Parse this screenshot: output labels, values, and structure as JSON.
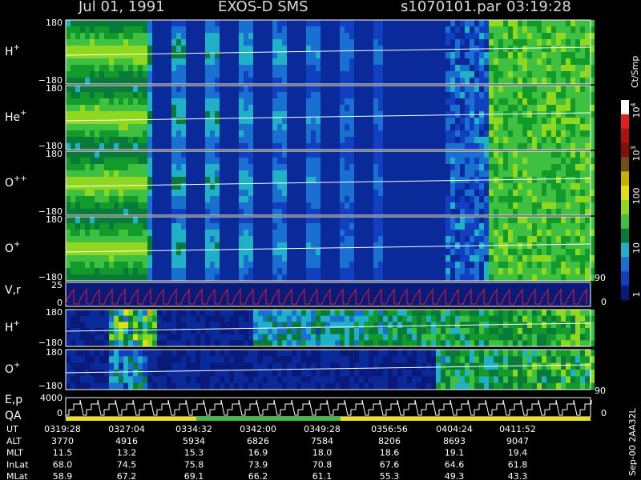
{
  "header": {
    "date": "Jul 01, 1991",
    "instrument": "EXOS-D SMS",
    "file": "s1070101.par",
    "time": "03:19:28"
  },
  "panels": [
    {
      "label": "H",
      "sup": "+",
      "top": "180",
      "bottom": "−180"
    },
    {
      "label": "He",
      "sup": "+",
      "top": "180",
      "bottom": "−180"
    },
    {
      "label": "O",
      "sup": "++",
      "top": "180",
      "bottom": "−180"
    },
    {
      "label": "O",
      "sup": "+",
      "top": "180",
      "bottom": "−180"
    }
  ],
  "velocity": {
    "label": "V,r",
    "top": "25",
    "bottom": "0",
    "right_top": "90",
    "right_bottom": "0"
  },
  "lower_panels": [
    {
      "label": "H",
      "sup": "+",
      "top": "180",
      "bottom": "−180"
    },
    {
      "label": "O",
      "sup": "+",
      "top": "180",
      "bottom": "−180"
    }
  ],
  "energy": {
    "label": "E,p",
    "qa": "QA",
    "top": "4000",
    "bottom": "0",
    "right_top": "90",
    "right_bottom": "0"
  },
  "colorbar": {
    "unit": "Ct/Smp",
    "ticks": [
      {
        "base": "10",
        "exp": "4"
      },
      {
        "base": "10",
        "exp": "3"
      },
      {
        "base": "100"
      },
      {
        "base": "10"
      },
      {
        "base": "1"
      }
    ]
  },
  "footer": {
    "rows": [
      {
        "label": "UT",
        "cells": [
          "0319:28",
          "0327:04",
          "0334:32",
          "0342:00",
          "0349:28",
          "0356:56",
          "0404:24",
          "0411:52"
        ]
      },
      {
        "label": "ALT",
        "cells": [
          "3770",
          "4916",
          "5934",
          "6826",
          "7584",
          "8206",
          "8693",
          "9047"
        ]
      },
      {
        "label": "MLT",
        "cells": [
          "11.5",
          "13.2",
          "15.3",
          "16.9",
          "18.0",
          "18.6",
          "19.1",
          "19.4"
        ]
      },
      {
        "label": "InLat",
        "cells": [
          "68.0",
          "74.5",
          "75.8",
          "73.9",
          "70.8",
          "67.6",
          "64.6",
          "61.8"
        ]
      },
      {
        "label": "MLat",
        "cells": [
          "58.9",
          "67.2",
          "69.1",
          "66.2",
          "61.1",
          "55.3",
          "49.3",
          "43.3"
        ]
      }
    ]
  },
  "side_note": "Sep-00 2AA32L"
}
